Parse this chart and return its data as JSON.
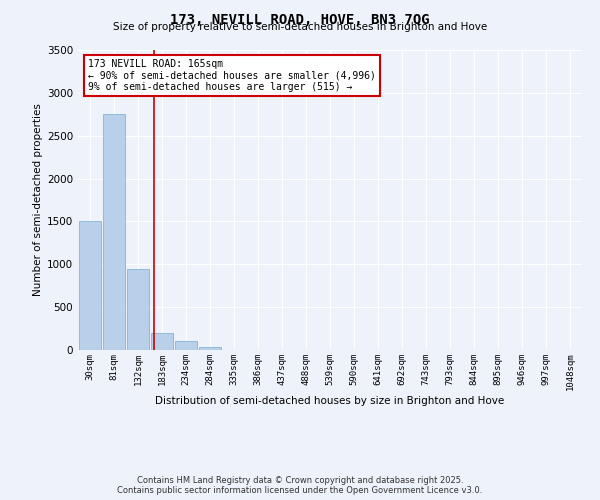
{
  "title": "173, NEVILL ROAD, HOVE, BN3 7QG",
  "subtitle": "Size of property relative to semi-detached houses in Brighton and Hove",
  "xlabel": "Distribution of semi-detached houses by size in Brighton and Hove",
  "ylabel": "Number of semi-detached properties",
  "bar_color": "#b8d0ea",
  "bar_edge_color": "#7aaad0",
  "background_color": "#eef2fa",
  "grid_color": "#ffffff",
  "bin_labels": [
    "30sqm",
    "81sqm",
    "132sqm",
    "183sqm",
    "234sqm",
    "284sqm",
    "335sqm",
    "386sqm",
    "437sqm",
    "488sqm",
    "539sqm",
    "590sqm",
    "641sqm",
    "692sqm",
    "743sqm",
    "793sqm",
    "844sqm",
    "895sqm",
    "946sqm",
    "997sqm",
    "1048sqm"
  ],
  "bar_values": [
    1510,
    2750,
    950,
    200,
    110,
    30,
    5,
    0,
    0,
    0,
    0,
    0,
    0,
    0,
    0,
    0,
    0,
    0,
    0,
    0,
    0
  ],
  "ylim": [
    0,
    3500
  ],
  "yticks": [
    0,
    500,
    1000,
    1500,
    2000,
    2500,
    3000,
    3500
  ],
  "red_line_x": 2.65,
  "annotation_title": "173 NEVILL ROAD: 165sqm",
  "annotation_line1": "← 90% of semi-detached houses are smaller (4,996)",
  "annotation_line2": "9% of semi-detached houses are larger (515) →",
  "annotation_box_color": "#ffffff",
  "annotation_box_edge": "#cc0000",
  "red_line_color": "#cc0000",
  "footer1": "Contains HM Land Registry data © Crown copyright and database right 2025.",
  "footer2": "Contains public sector information licensed under the Open Government Licence v3.0.",
  "figsize": [
    6.0,
    5.0
  ],
  "dpi": 100
}
